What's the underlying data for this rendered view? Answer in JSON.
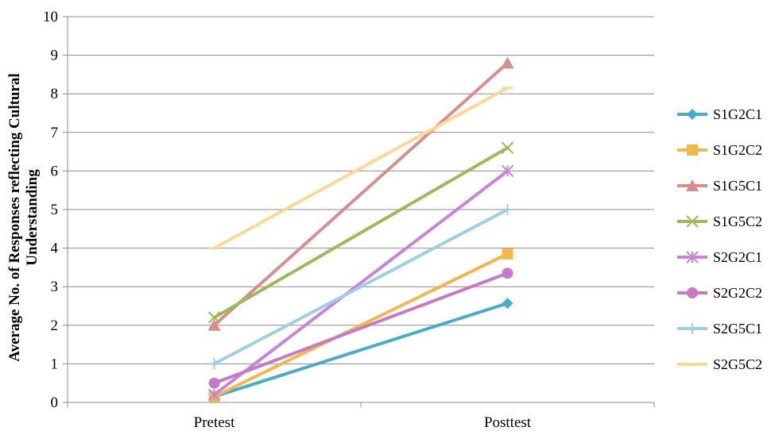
{
  "chart_data": {
    "type": "line",
    "categories": [
      "Pretest",
      "Posttest"
    ],
    "ylabel_lines": [
      "Average No. of Responses reflecting Cultural",
      "Understanding"
    ],
    "ylim": [
      0,
      10
    ],
    "yticks": [
      0,
      1,
      2,
      3,
      4,
      5,
      6,
      7,
      8,
      9,
      10
    ],
    "grid": true,
    "legend_position": "right",
    "series": [
      {
        "name": "S1G2C1",
        "values": [
          0.15,
          2.57
        ],
        "color": "#4BACC6",
        "marker": "diamond"
      },
      {
        "name": "S1G2C2",
        "values": [
          0.15,
          3.85
        ],
        "color": "#F2B84B",
        "marker": "square"
      },
      {
        "name": "S1G5C1",
        "values": [
          2.0,
          8.8
        ],
        "color": "#D88E8E",
        "marker": "triangle"
      },
      {
        "name": "S1G5C2",
        "values": [
          2.2,
          6.6
        ],
        "color": "#9BBB59",
        "marker": "x"
      },
      {
        "name": "S2G2C1",
        "values": [
          0.2,
          6.0
        ],
        "color": "#C685D9",
        "marker": "star"
      },
      {
        "name": "S2G2C2",
        "values": [
          0.5,
          3.35
        ],
        "color": "#C679C6",
        "marker": "circle"
      },
      {
        "name": "S2G5C1",
        "values": [
          1.0,
          5.0
        ],
        "color": "#9FCFE0",
        "marker": "plus"
      },
      {
        "name": "S2G5C2",
        "values": [
          4.0,
          8.15
        ],
        "color": "#FBD896",
        "marker": "dash"
      }
    ]
  }
}
